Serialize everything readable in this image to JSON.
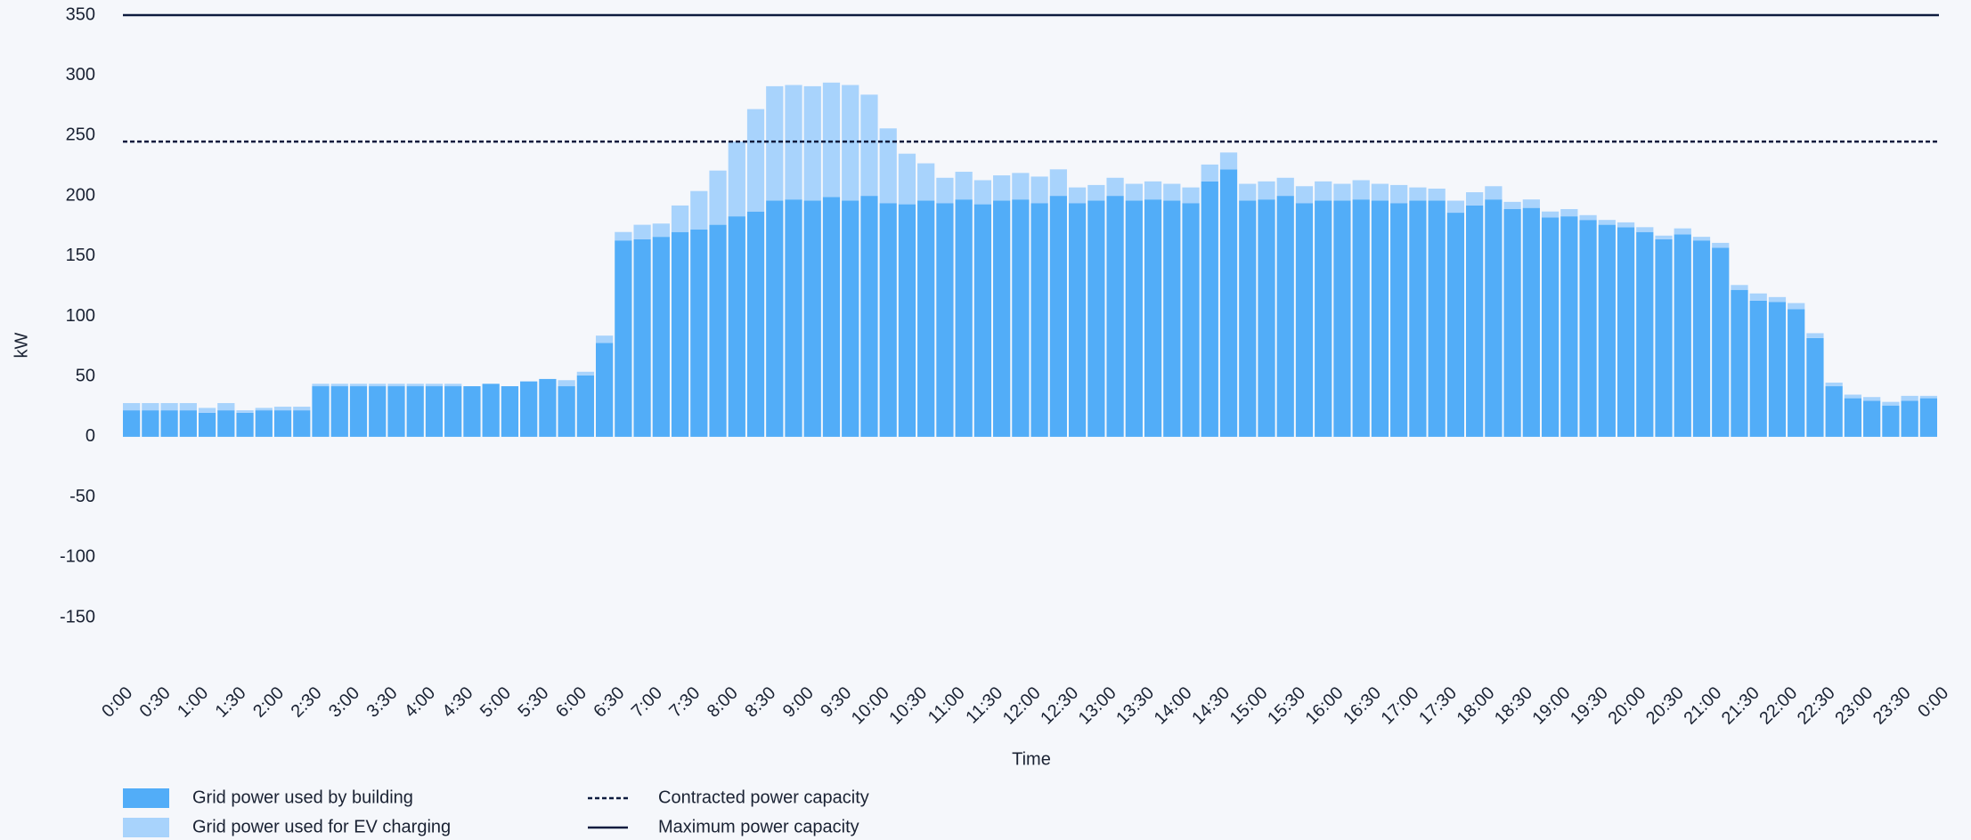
{
  "chart_data": {
    "type": "stacked-bar",
    "ylabel": "kW",
    "xlabel": "Time",
    "ylim": [
      -150,
      350
    ],
    "yticks": [
      -150,
      -100,
      -50,
      0,
      50,
      100,
      150,
      200,
      250,
      300,
      350
    ],
    "xlim": [
      0,
      24
    ],
    "xticks": [
      {
        "value": 0,
        "label": "0:00"
      },
      {
        "value": 0.5,
        "label": "0:30"
      },
      {
        "value": 1,
        "label": "1:00"
      },
      {
        "value": 1.5,
        "label": "1:30"
      },
      {
        "value": 2,
        "label": "2:00"
      },
      {
        "value": 2.5,
        "label": "2:30"
      },
      {
        "value": 3,
        "label": "3:00"
      },
      {
        "value": 3.5,
        "label": "3:30"
      },
      {
        "value": 4,
        "label": "4:00"
      },
      {
        "value": 4.5,
        "label": "4:30"
      },
      {
        "value": 5,
        "label": "5:00"
      },
      {
        "value": 5.5,
        "label": "5:30"
      },
      {
        "value": 6,
        "label": "6:00"
      },
      {
        "value": 6.5,
        "label": "6:30"
      },
      {
        "value": 7,
        "label": "7:00"
      },
      {
        "value": 7.5,
        "label": "7:30"
      },
      {
        "value": 8,
        "label": "8:00"
      },
      {
        "value": 8.5,
        "label": "8:30"
      },
      {
        "value": 9,
        "label": "9:00"
      },
      {
        "value": 9.5,
        "label": "9:30"
      },
      {
        "value": 10,
        "label": "10:00"
      },
      {
        "value": 10.5,
        "label": "10:30"
      },
      {
        "value": 11,
        "label": "11:00"
      },
      {
        "value": 11.5,
        "label": "11:30"
      },
      {
        "value": 12,
        "label": "12:00"
      },
      {
        "value": 12.5,
        "label": "12:30"
      },
      {
        "value": 13,
        "label": "13:00"
      },
      {
        "value": 13.5,
        "label": "13:30"
      },
      {
        "value": 14,
        "label": "14:00"
      },
      {
        "value": 14.5,
        "label": "14:30"
      },
      {
        "value": 15,
        "label": "15:00"
      },
      {
        "value": 15.5,
        "label": "15:30"
      },
      {
        "value": 16,
        "label": "16:00"
      },
      {
        "value": 16.5,
        "label": "16:30"
      },
      {
        "value": 17,
        "label": "17:00"
      },
      {
        "value": 17.5,
        "label": "17:30"
      },
      {
        "value": 18,
        "label": "18:00"
      },
      {
        "value": 18.5,
        "label": "18:30"
      },
      {
        "value": 19,
        "label": "19:00"
      },
      {
        "value": 19.5,
        "label": "19:30"
      },
      {
        "value": 20,
        "label": "20:00"
      },
      {
        "value": 20.5,
        "label": "20:30"
      },
      {
        "value": 21,
        "label": "21:00"
      },
      {
        "value": 21.5,
        "label": "21:30"
      },
      {
        "value": 22,
        "label": "22:00"
      },
      {
        "value": 22.5,
        "label": "22:30"
      },
      {
        "value": 23,
        "label": "23:00"
      },
      {
        "value": 23.5,
        "label": "23:30"
      },
      {
        "value": 24,
        "label": "0:00"
      }
    ],
    "x": [
      0,
      0.25,
      0.5,
      0.75,
      1,
      1.25,
      1.5,
      1.75,
      2,
      2.25,
      2.5,
      2.75,
      3,
      3.25,
      3.5,
      3.75,
      4,
      4.25,
      4.5,
      4.75,
      5,
      5.25,
      5.5,
      5.75,
      6,
      6.25,
      6.5,
      6.75,
      7,
      7.25,
      7.5,
      7.75,
      8,
      8.25,
      8.5,
      8.75,
      9,
      9.25,
      9.5,
      9.75,
      10,
      10.25,
      10.5,
      10.75,
      11,
      11.25,
      11.5,
      11.75,
      12,
      12.25,
      12.5,
      12.75,
      13,
      13.25,
      13.5,
      13.75,
      14,
      14.25,
      14.5,
      14.75,
      15,
      15.25,
      15.5,
      15.75,
      16,
      16.25,
      16.5,
      16.75,
      17,
      17.25,
      17.5,
      17.75,
      18,
      18.25,
      18.5,
      18.75,
      19,
      19.25,
      19.5,
      19.75,
      20,
      20.25,
      20.5,
      20.75,
      21,
      21.25,
      21.5,
      21.75,
      22,
      22.25,
      22.5,
      22.75,
      23,
      23.25,
      23.5,
      23.75
    ],
    "series": [
      {
        "name": "Grid power used by building",
        "color": "#52adf8",
        "values": [
          22,
          22,
          22,
          22,
          20,
          22,
          20,
          22,
          22,
          22,
          42,
          42,
          42,
          42,
          42,
          42,
          42,
          42,
          42,
          44,
          42,
          46,
          48,
          42,
          51,
          78,
          163,
          164,
          166,
          170,
          172,
          176,
          183,
          187,
          196,
          197,
          196,
          199,
          196,
          200,
          194,
          193,
          196,
          194,
          197,
          193,
          196,
          197,
          194,
          200,
          194,
          196,
          200,
          196,
          197,
          196,
          194,
          212,
          222,
          196,
          197,
          200,
          194,
          196,
          196,
          197,
          196,
          194,
          196,
          196,
          186,
          192,
          197,
          189,
          190,
          182,
          183,
          180,
          176,
          174,
          170,
          164,
          168,
          163,
          157,
          122,
          113,
          112,
          106,
          82,
          42,
          32,
          30,
          26,
          30,
          32
        ]
      },
      {
        "name": "Grid power used for EV charging",
        "color": "#a8d3fc",
        "values": [
          6,
          6,
          6,
          6,
          4,
          6,
          2,
          2,
          3,
          3,
          2,
          2,
          2,
          2,
          2,
          2,
          2,
          2,
          0,
          0,
          0,
          0,
          0,
          5,
          3,
          6,
          7,
          12,
          11,
          22,
          32,
          45,
          62,
          85,
          95,
          95,
          95,
          95,
          96,
          84,
          62,
          42,
          31,
          21,
          23,
          20,
          21,
          22,
          22,
          22,
          13,
          13,
          15,
          14,
          15,
          14,
          13,
          14,
          14,
          14,
          15,
          15,
          14,
          16,
          14,
          16,
          14,
          15,
          11,
          10,
          10,
          11,
          11,
          6,
          7,
          5,
          6,
          4,
          4,
          4,
          4,
          3,
          5,
          3,
          4,
          4,
          6,
          4,
          5,
          4,
          3,
          3,
          3,
          3,
          4,
          2
        ]
      }
    ],
    "reference_lines": [
      {
        "name": "Contracted power capacity",
        "value": 245,
        "style": "dashed",
        "color": "#0d1b3e"
      },
      {
        "name": "Maximum power capacity",
        "value": 350,
        "style": "solid",
        "color": "#0d1b3e"
      }
    ]
  }
}
